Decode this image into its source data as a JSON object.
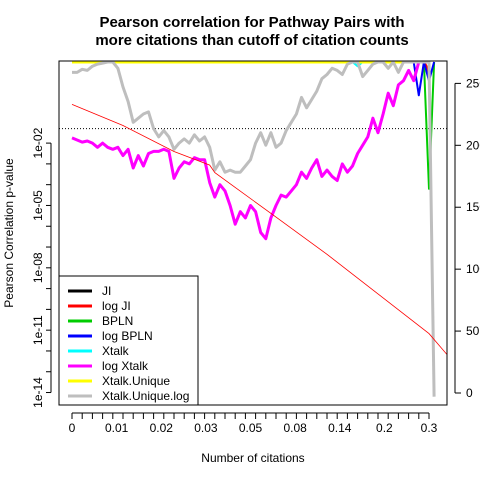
{
  "chart_data": {
    "type": "line",
    "title_lines": [
      "Pearson correlation for Pathway Pairs with",
      "more citations than cutoff of citation counts"
    ],
    "xlabel": "Number of citations",
    "ylabel": "Pearson Correlation p-value",
    "x_tick_labels": [
      "0",
      "0.01",
      "0.02",
      "0.03",
      "0.05",
      "0.08",
      "0.14",
      "0.2",
      "0.3"
    ],
    "y_log_ticks": [
      {
        "label": "1e-02",
        "exp": -2
      },
      {
        "label": "1e-05",
        "exp": -5
      },
      {
        "label": "1e-08",
        "exp": -8
      },
      {
        "label": "1e-11",
        "exp": -11
      },
      {
        "label": "1e-14",
        "exp": -14
      }
    ],
    "y_exp_range": [
      -14.6,
      1.95
    ],
    "right_axis_ticks": [
      "0",
      "50",
      "100",
      "150",
      "200",
      "250"
    ],
    "right_axis_range": [
      0,
      260
    ],
    "n_steps": 70,
    "hline_p": 0.05,
    "legend_position": "bottom-left",
    "series": [
      {
        "name": "JI",
        "color": "#000000",
        "width": 2,
        "points": [
          [
            0,
            1.9
          ],
          [
            66,
            1.9
          ]
        ]
      },
      {
        "name": "log JI",
        "color": "#ff0000",
        "width": 3,
        "points": [
          [
            0,
            1.9
          ],
          [
            69,
            1.9
          ],
          [
            70,
            1.4
          ]
        ]
      },
      {
        "name": "BPLN",
        "color": "#00cc00",
        "width": 2,
        "points": [
          [
            0,
            1.9
          ],
          [
            69,
            1.9
          ],
          [
            70,
            -4.2
          ],
          [
            71,
            1.9
          ]
        ]
      },
      {
        "name": "log BPLN",
        "color": "#0000ff",
        "width": 2,
        "points": [
          [
            0,
            1.9
          ],
          [
            67,
            1.9
          ],
          [
            68,
            0.3
          ],
          [
            69,
            1.9
          ],
          [
            70,
            1.0
          ],
          [
            71,
            1.9
          ]
        ]
      },
      {
        "name": "Xtalk",
        "color": "#00ffff",
        "width": 2,
        "points": [
          [
            0,
            1.9
          ],
          [
            55,
            1.9
          ],
          [
            56,
            1.7
          ],
          [
            57,
            1.9
          ],
          [
            60,
            1.9
          ]
        ]
      },
      {
        "name": "log Xtalk",
        "color": "#ff00ff",
        "width": 3,
        "points": [
          [
            0,
            -1.75
          ],
          [
            1,
            -1.85
          ],
          [
            2,
            -1.95
          ],
          [
            3,
            -1.9
          ],
          [
            4,
            -2.0
          ],
          [
            5,
            -2.2
          ],
          [
            6,
            -2.0
          ],
          [
            7,
            -2.2
          ],
          [
            8,
            -2.3
          ],
          [
            9,
            -2.2
          ],
          [
            10,
            -2.6
          ],
          [
            11,
            -2.3
          ],
          [
            12,
            -3.2
          ],
          [
            13,
            -2.6
          ],
          [
            14,
            -3.1
          ],
          [
            15,
            -2.5
          ],
          [
            16,
            -2.4
          ],
          [
            17,
            -2.4
          ],
          [
            18,
            -2.3
          ],
          [
            19,
            -2.4
          ],
          [
            20,
            -3.7
          ],
          [
            21,
            -3.2
          ],
          [
            22,
            -2.9
          ],
          [
            23,
            -3.0
          ],
          [
            24,
            -2.7
          ],
          [
            25,
            -2.8
          ],
          [
            26,
            -2.8
          ],
          [
            27,
            -3.9
          ],
          [
            28,
            -4.6
          ],
          [
            29,
            -4.0
          ],
          [
            30,
            -4.3
          ],
          [
            31,
            -5.0
          ],
          [
            32,
            -5.9
          ],
          [
            33,
            -5.3
          ],
          [
            34,
            -5.6
          ],
          [
            35,
            -5.0
          ],
          [
            36,
            -5.3
          ],
          [
            37,
            -6.3
          ],
          [
            38,
            -6.6
          ],
          [
            39,
            -5.6
          ],
          [
            40,
            -5.0
          ],
          [
            41,
            -4.5
          ],
          [
            42,
            -4.6
          ],
          [
            43,
            -4.3
          ],
          [
            44,
            -4.0
          ],
          [
            45,
            -3.4
          ],
          [
            46,
            -3.7
          ],
          [
            47,
            -3.2
          ],
          [
            48,
            -2.8
          ],
          [
            49,
            -3.6
          ],
          [
            50,
            -3.3
          ],
          [
            51,
            -3.6
          ],
          [
            52,
            -3.8
          ],
          [
            53,
            -3.0
          ],
          [
            54,
            -3.4
          ],
          [
            55,
            -3.1
          ],
          [
            56,
            -2.5
          ],
          [
            57,
            -2.1
          ],
          [
            58,
            -1.7
          ],
          [
            59,
            -0.8
          ],
          [
            60,
            -1.5
          ],
          [
            61,
            -0.6
          ],
          [
            62,
            0.4
          ],
          [
            63,
            -0.2
          ],
          [
            64,
            0.8
          ],
          [
            65,
            1.0
          ],
          [
            66,
            1.5
          ],
          [
            67,
            1.0
          ],
          [
            68,
            1.9
          ],
          [
            69,
            1.9
          ]
        ]
      },
      {
        "name": "Xtalk.Unique",
        "color": "#ffff00",
        "width": 3,
        "points": [
          [
            0,
            1.9
          ],
          [
            66,
            1.9
          ]
        ]
      },
      {
        "name": "Xtalk.Unique.log",
        "color": "#bebebe",
        "width": 3,
        "points": [
          [
            0,
            1.4
          ],
          [
            1,
            1.4
          ],
          [
            2,
            1.55
          ],
          [
            3,
            1.5
          ],
          [
            4,
            1.7
          ],
          [
            5,
            1.8
          ],
          [
            6,
            1.85
          ],
          [
            7,
            1.9
          ],
          [
            8,
            1.9
          ],
          [
            9,
            1.6
          ],
          [
            10,
            0.7
          ],
          [
            11,
            0.0
          ],
          [
            12,
            -1.0
          ],
          [
            13,
            -0.8
          ],
          [
            14,
            -0.6
          ],
          [
            15,
            -0.5
          ],
          [
            16,
            -1.3
          ],
          [
            17,
            -1.7
          ],
          [
            18,
            -1.4
          ],
          [
            19,
            -1.7
          ],
          [
            20,
            -2.3
          ],
          [
            21,
            -2.0
          ],
          [
            22,
            -1.8
          ],
          [
            23,
            -2.0
          ],
          [
            24,
            -1.6
          ],
          [
            25,
            -1.9
          ],
          [
            26,
            -1.7
          ],
          [
            27,
            -2.2
          ],
          [
            28,
            -3.3
          ],
          [
            29,
            -2.9
          ],
          [
            30,
            -3.4
          ],
          [
            31,
            -3.3
          ],
          [
            32,
            -3.4
          ],
          [
            33,
            -3.4
          ],
          [
            34,
            -3.1
          ],
          [
            35,
            -2.8
          ],
          [
            36,
            -2.0
          ],
          [
            37,
            -1.5
          ],
          [
            38,
            -2.1
          ],
          [
            39,
            -1.5
          ],
          [
            40,
            -2.2
          ],
          [
            41,
            -2.0
          ],
          [
            42,
            -1.4
          ],
          [
            43,
            -1.0
          ],
          [
            44,
            -0.6
          ],
          [
            45,
            0.2
          ],
          [
            46,
            -0.3
          ],
          [
            47,
            0.1
          ],
          [
            48,
            0.5
          ],
          [
            49,
            1.1
          ],
          [
            50,
            1.3
          ],
          [
            51,
            1.6
          ],
          [
            52,
            1.5
          ],
          [
            53,
            1.3
          ],
          [
            54,
            1.8
          ],
          [
            55,
            1.9
          ],
          [
            56,
            1.9
          ],
          [
            57,
            1.2
          ],
          [
            58,
            1.5
          ],
          [
            59,
            1.8
          ],
          [
            60,
            1.9
          ],
          [
            61,
            1.9
          ],
          [
            62,
            1.6
          ],
          [
            63,
            1.9
          ],
          [
            64,
            1.4
          ],
          [
            65,
            1.9
          ],
          [
            66,
            1.9
          ],
          [
            67,
            1.9
          ],
          [
            68,
            1.9
          ],
          [
            69,
            1.9
          ],
          [
            70,
            1.9
          ],
          [
            71,
            -14.2
          ]
        ]
      }
    ],
    "count_line": {
      "color": "#ff0000",
      "points": [
        [
          0,
          233
        ],
        [
          10,
          216
        ],
        [
          20,
          195
        ],
        [
          27,
          184
        ],
        [
          28,
          178
        ],
        [
          32,
          166
        ],
        [
          40,
          142
        ],
        [
          50,
          112
        ],
        [
          60,
          80
        ],
        [
          70,
          48
        ],
        [
          75,
          24
        ],
        [
          78,
          7
        ]
      ]
    }
  }
}
